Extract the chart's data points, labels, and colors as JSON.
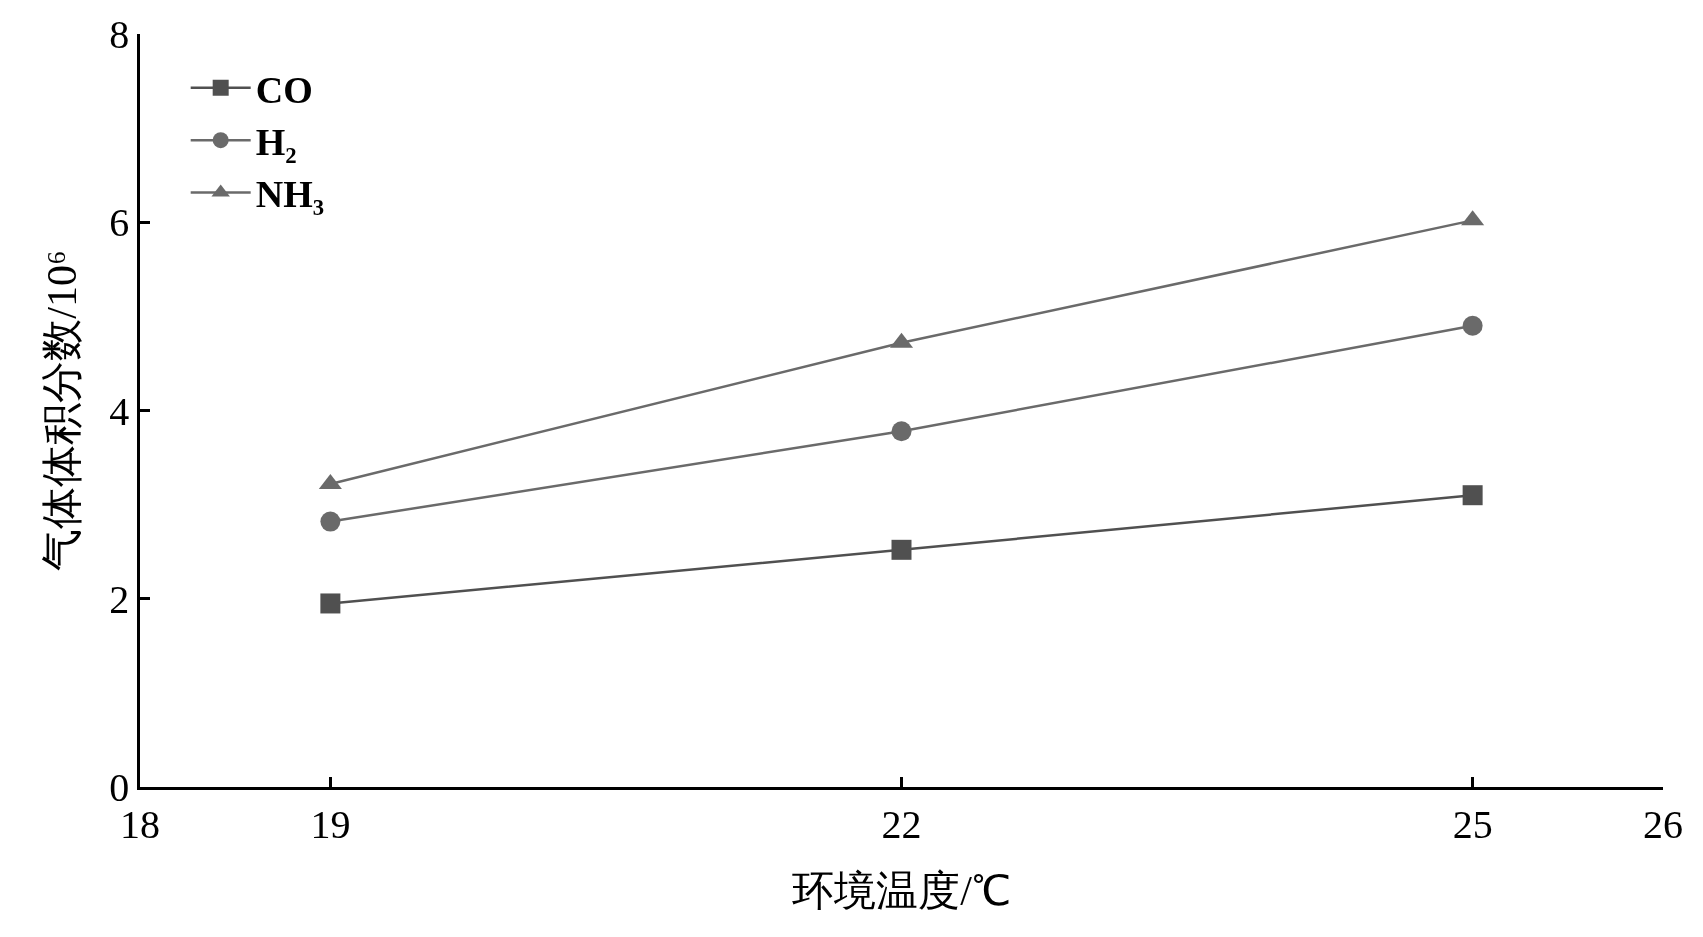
{
  "chart_data": {
    "type": "line",
    "xlabel": "环境温度/℃",
    "ylabel": "气体体积分数/10⁶",
    "x": [
      19,
      22,
      25
    ],
    "series": [
      {
        "name": "CO",
        "color": "#505050",
        "marker": "square",
        "values": [
          1.95,
          2.52,
          3.1
        ]
      },
      {
        "name": "H₂",
        "color": "#6a6a6a",
        "marker": "circle",
        "values": [
          2.82,
          3.78,
          4.9
        ]
      },
      {
        "name": "NH₃",
        "color": "#6a6a6a",
        "marker": "triangle",
        "values": [
          3.22,
          4.72,
          6.02
        ]
      }
    ],
    "xlim": [
      18,
      26
    ],
    "xticks": [
      18,
      19,
      22,
      25,
      26
    ],
    "ylim": [
      0,
      8
    ],
    "yticks": [
      0,
      2,
      4,
      6,
      8
    ],
    "legend": "top left",
    "line_style": "solid"
  }
}
